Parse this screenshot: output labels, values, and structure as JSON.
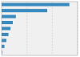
{
  "chart_data": {
    "type": "bar",
    "orientation": "horizontal",
    "values": [
      3567,
      2400,
      750,
      590,
      470,
      360,
      250,
      150,
      60
    ],
    "colors": [
      "#3a8bbf",
      "#3a8bbf",
      "#3a8bbf",
      "#3a8bbf",
      "#3a8bbf",
      "#3a8bbf",
      "#3a8bbf",
      "#3a8bbf",
      "#a8c8e0"
    ],
    "xlim": [
      0,
      4000
    ],
    "xticks": [
      1333,
      2667,
      4000
    ],
    "grid": true,
    "tick_labels": false
  }
}
